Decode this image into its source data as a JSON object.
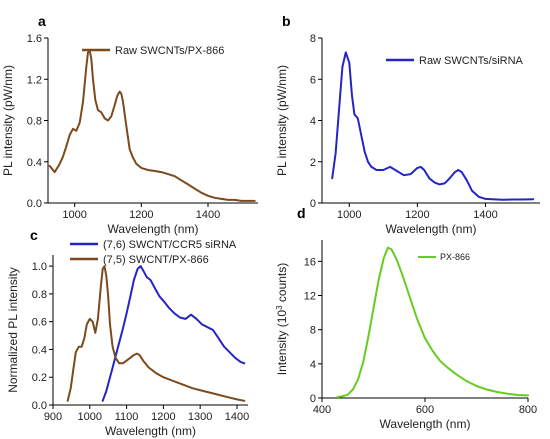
{
  "chart_data": [
    {
      "panel": "a",
      "type": "line",
      "title": "",
      "xlabel": "Wavelength (nm)",
      "ylabel": "PL intensity (pW/nm)",
      "xlim": [
        920,
        1550
      ],
      "ylim": [
        0,
        1.6
      ],
      "xticks": [
        1000,
        1200,
        1400
      ],
      "xtick_labels": [
        "1000",
        "1200",
        "1400"
      ],
      "yticks": [
        0,
        0.4,
        0.8,
        1.2,
        1.6
      ],
      "ytick_labels": [
        "0.0",
        "0.4",
        "0.8",
        "1.2",
        "1.6"
      ],
      "grid": false,
      "legend_position": "top-right",
      "color": "#7b4a1e",
      "series": [
        {
          "name": "Raw SWCNTs/PX-866",
          "x": [
            925,
            940,
            955,
            965,
            975,
            985,
            995,
            1005,
            1015,
            1025,
            1035,
            1040,
            1045,
            1050,
            1055,
            1062,
            1070,
            1080,
            1090,
            1100,
            1110,
            1120,
            1128,
            1135,
            1140,
            1145,
            1150,
            1158,
            1165,
            1175,
            1185,
            1200,
            1220,
            1240,
            1260,
            1280,
            1300,
            1320,
            1340,
            1360,
            1380,
            1400,
            1420,
            1440,
            1460,
            1480,
            1500,
            1520,
            1540
          ],
          "y": [
            0.36,
            0.3,
            0.38,
            0.45,
            0.55,
            0.66,
            0.72,
            0.7,
            0.78,
            0.98,
            1.32,
            1.46,
            1.48,
            1.4,
            1.2,
            1.0,
            0.9,
            0.88,
            0.82,
            0.8,
            0.84,
            0.95,
            1.04,
            1.08,
            1.06,
            0.98,
            0.86,
            0.68,
            0.52,
            0.44,
            0.38,
            0.34,
            0.32,
            0.31,
            0.3,
            0.28,
            0.26,
            0.22,
            0.18,
            0.14,
            0.1,
            0.07,
            0.05,
            0.04,
            0.03,
            0.03,
            0.02,
            0.02,
            0.02
          ]
        }
      ]
    },
    {
      "panel": "b",
      "type": "line",
      "title": "",
      "xlabel": "Wavelength (nm)",
      "ylabel": "PL intensity (pW/nm)",
      "xlim": [
        920,
        1560
      ],
      "ylim": [
        0,
        8
      ],
      "xticks": [
        1000,
        1200,
        1400
      ],
      "xtick_labels": [
        "1000",
        "1200",
        "1400"
      ],
      "yticks": [
        0,
        2,
        4,
        6,
        8
      ],
      "ytick_labels": [
        "0",
        "2",
        "4",
        "6",
        "8"
      ],
      "grid": false,
      "legend_position": "top-right",
      "color": "#2424c8",
      "series": [
        {
          "name": "Raw SWCNTs/siRNA",
          "x": [
            950,
            960,
            970,
            980,
            990,
            1000,
            1008,
            1015,
            1025,
            1035,
            1045,
            1055,
            1065,
            1080,
            1100,
            1120,
            1140,
            1160,
            1180,
            1200,
            1210,
            1220,
            1235,
            1250,
            1265,
            1280,
            1295,
            1310,
            1320,
            1330,
            1345,
            1360,
            1380,
            1400,
            1420,
            1450,
            1480,
            1510,
            1540
          ],
          "y": [
            1.2,
            2.4,
            4.5,
            6.6,
            7.3,
            6.8,
            5.2,
            4.3,
            4.1,
            3.3,
            2.5,
            2.0,
            1.75,
            1.6,
            1.6,
            1.75,
            1.55,
            1.35,
            1.4,
            1.7,
            1.75,
            1.6,
            1.2,
            1.0,
            0.9,
            0.95,
            1.2,
            1.5,
            1.6,
            1.5,
            1.1,
            0.6,
            0.3,
            0.2,
            0.18,
            0.16,
            0.17,
            0.17,
            0.18
          ]
        }
      ]
    },
    {
      "panel": "c",
      "type": "line",
      "title": "",
      "xlabel": "Wavelength (nm)",
      "ylabel": "Normalized PL intensity",
      "xlim": [
        900,
        1430
      ],
      "ylim": [
        0,
        1.08
      ],
      "xticks": [
        900,
        1000,
        1100,
        1200,
        1300,
        1400
      ],
      "xtick_labels": [
        "900",
        "1000",
        "1100",
        "1200",
        "1300",
        "1400"
      ],
      "yticks": [
        0,
        0.2,
        0.4,
        0.6,
        0.8,
        1.0
      ],
      "ytick_labels": [
        "0.0",
        "0.2",
        "0.4",
        "0.6",
        "0.8",
        "1.0"
      ],
      "grid": false,
      "legend_position": "top-left",
      "series": [
        {
          "name": "(7,6) SWCNT/CCR5 siRNA",
          "color": "#2424c8",
          "x": [
            1035,
            1045,
            1060,
            1075,
            1090,
            1100,
            1110,
            1120,
            1130,
            1138,
            1145,
            1155,
            1165,
            1175,
            1190,
            1200,
            1215,
            1230,
            1245,
            1260,
            1275,
            1290,
            1305,
            1320,
            1335,
            1350,
            1365,
            1380,
            1395,
            1410,
            1420
          ],
          "y": [
            0.03,
            0.1,
            0.25,
            0.4,
            0.55,
            0.66,
            0.78,
            0.9,
            0.98,
            1.0,
            0.97,
            0.92,
            0.9,
            0.85,
            0.78,
            0.75,
            0.7,
            0.66,
            0.63,
            0.62,
            0.65,
            0.62,
            0.58,
            0.56,
            0.54,
            0.48,
            0.42,
            0.38,
            0.34,
            0.31,
            0.3
          ]
        },
        {
          "name": "(7,5) SWCNT/PX-866",
          "color": "#7b4a1e",
          "x": [
            940,
            948,
            955,
            962,
            970,
            978,
            985,
            992,
            1000,
            1008,
            1015,
            1022,
            1030,
            1035,
            1040,
            1045,
            1050,
            1055,
            1062,
            1070,
            1080,
            1090,
            1100,
            1110,
            1120,
            1128,
            1135,
            1145,
            1160,
            1180,
            1200,
            1220,
            1250,
            1280,
            1310,
            1340,
            1370,
            1400,
            1420
          ],
          "y": [
            0.03,
            0.12,
            0.25,
            0.38,
            0.42,
            0.42,
            0.48,
            0.58,
            0.62,
            0.6,
            0.52,
            0.62,
            0.85,
            0.98,
            1.0,
            0.93,
            0.78,
            0.58,
            0.42,
            0.34,
            0.3,
            0.3,
            0.32,
            0.34,
            0.36,
            0.37,
            0.36,
            0.32,
            0.27,
            0.23,
            0.2,
            0.18,
            0.15,
            0.12,
            0.1,
            0.08,
            0.06,
            0.04,
            0.03
          ]
        }
      ]
    },
    {
      "panel": "d",
      "type": "line",
      "title": "",
      "xlabel": "Wavelength (nm)",
      "ylabel": "Intensity (10",
      "ylabel_sup": "3",
      "ylabel_tail": " counts)",
      "xlim": [
        400,
        800
      ],
      "ylim": [
        0,
        18.5
      ],
      "xticks": [
        400,
        600,
        800
      ],
      "xtick_labels": [
        "400",
        "600",
        "800"
      ],
      "yticks": [
        0,
        4,
        8,
        12,
        16
      ],
      "ytick_labels": [
        "0",
        "4",
        "8",
        "12",
        "16"
      ],
      "grid": false,
      "legend_position": "top-right",
      "color": "#66cc22",
      "series": [
        {
          "name": "PX-866",
          "x": [
            430,
            440,
            450,
            460,
            470,
            480,
            490,
            500,
            510,
            520,
            528,
            535,
            545,
            555,
            565,
            575,
            585,
            600,
            615,
            630,
            645,
            660,
            680,
            700,
            720,
            740,
            760,
            780,
            800
          ],
          "y": [
            0.1,
            0.2,
            0.4,
            1.0,
            2.2,
            4.2,
            7.2,
            10.5,
            13.8,
            16.4,
            17.6,
            17.4,
            16.2,
            14.6,
            12.8,
            11.0,
            9.2,
            7.0,
            5.5,
            4.3,
            3.5,
            2.8,
            2.0,
            1.4,
            1.0,
            0.7,
            0.5,
            0.35,
            0.3
          ]
        }
      ]
    }
  ],
  "labels": {
    "a": "a",
    "b": "b",
    "c": "c",
    "d": "d"
  }
}
